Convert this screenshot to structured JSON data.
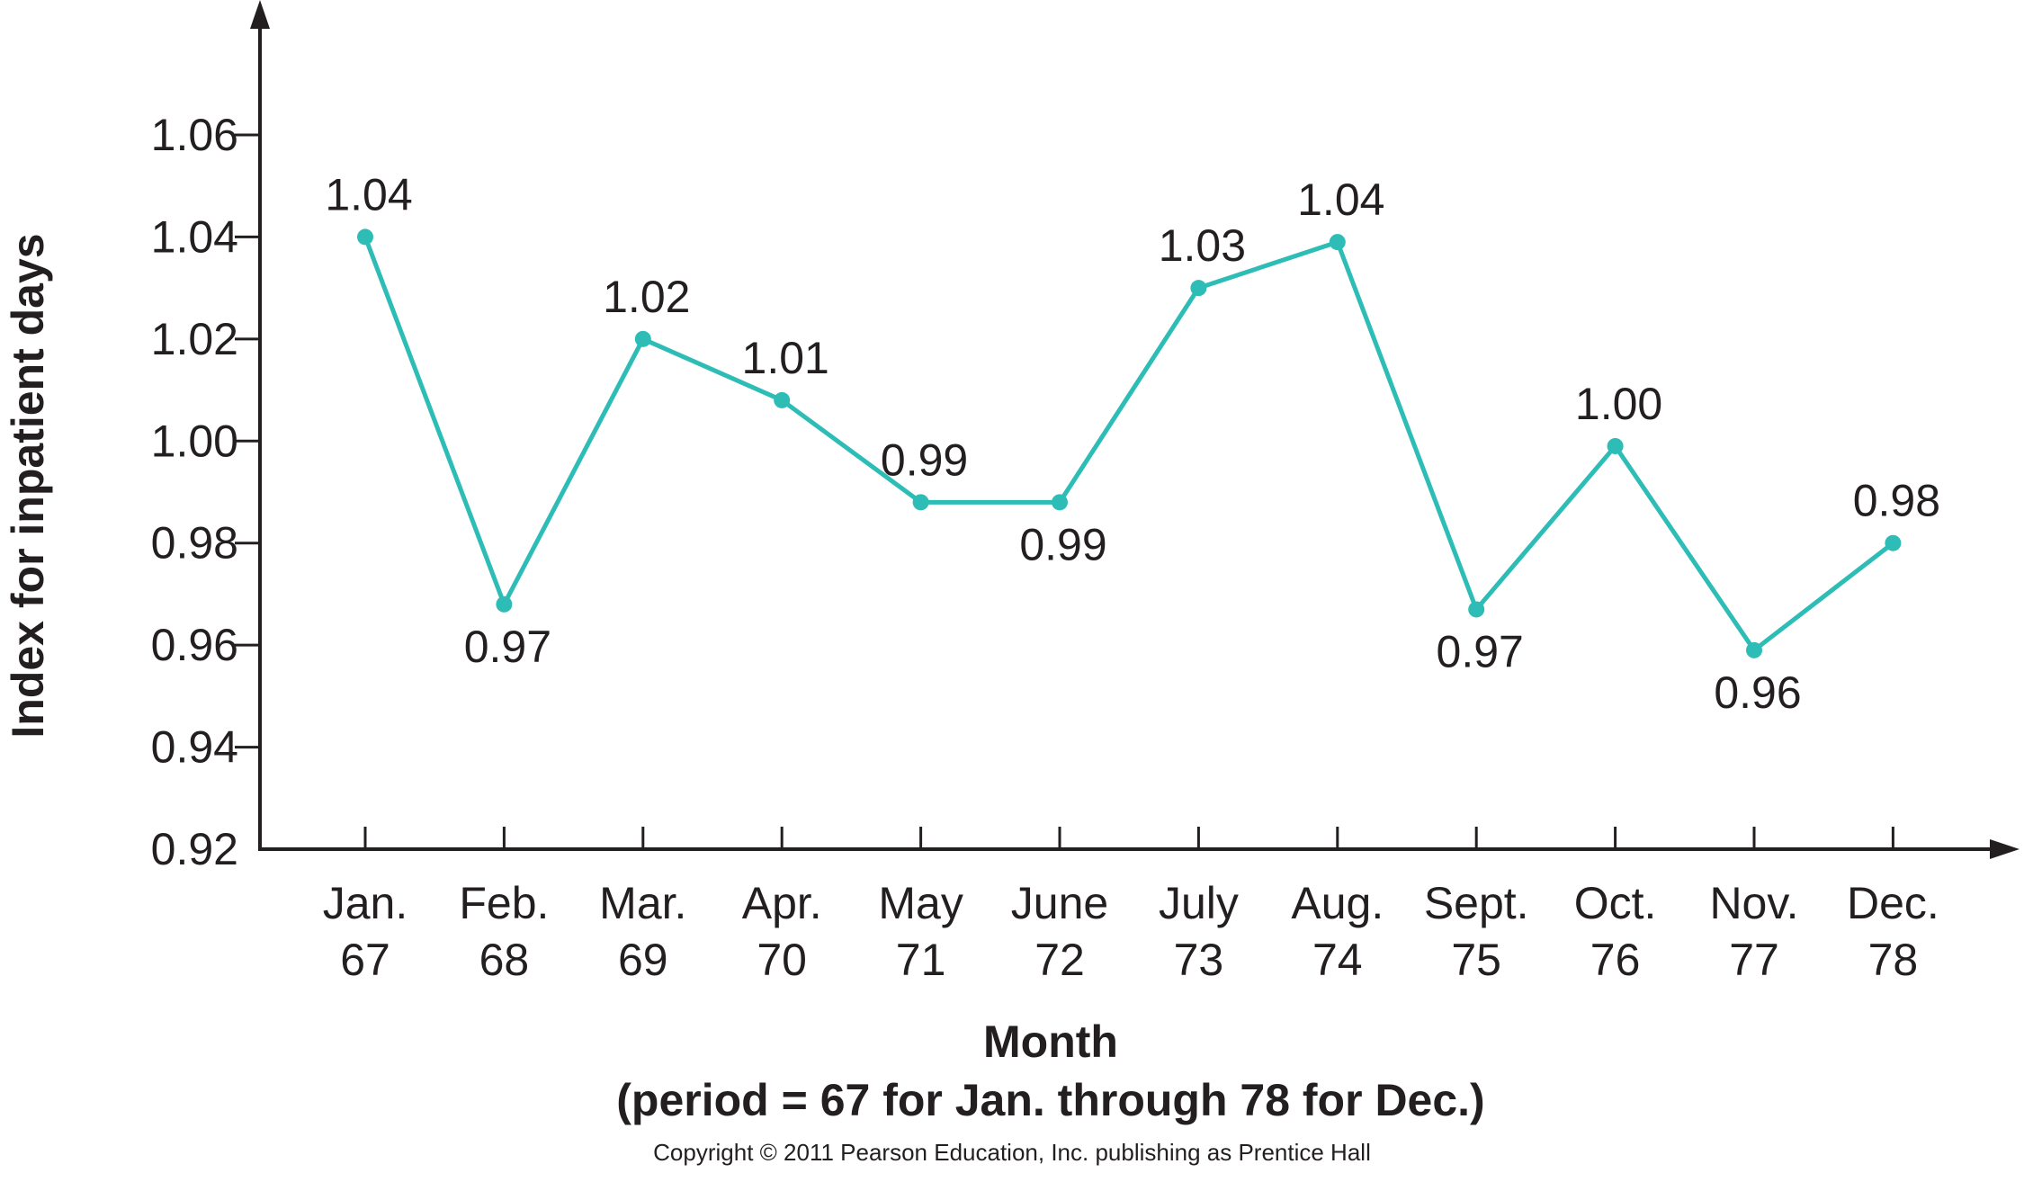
{
  "chart_data": {
    "type": "line",
    "xlabel": "Month",
    "xlabel_sub": "(period = 67 for Jan. through 78 for Dec.)",
    "ylabel": "Index for inpatient days",
    "ylim": [
      0.92,
      1.06
    ],
    "yticks": [
      "0.92",
      "0.94",
      "0.96",
      "0.98",
      "1.00",
      "1.02",
      "1.04",
      "1.06"
    ],
    "categories": [
      {
        "month": "Jan.",
        "period": "67"
      },
      {
        "month": "Feb.",
        "period": "68"
      },
      {
        "month": "Mar.",
        "period": "69"
      },
      {
        "month": "Apr.",
        "period": "70"
      },
      {
        "month": "May",
        "period": "71"
      },
      {
        "month": "June",
        "period": "72"
      },
      {
        "month": "July",
        "period": "73"
      },
      {
        "month": "Aug.",
        "period": "74"
      },
      {
        "month": "Sept.",
        "period": "75"
      },
      {
        "month": "Oct.",
        "period": "76"
      },
      {
        "month": "Nov.",
        "period": "77"
      },
      {
        "month": "Dec.",
        "period": "78"
      }
    ],
    "series": [
      {
        "values": [
          1.04,
          0.968,
          1.02,
          1.008,
          0.988,
          0.988,
          1.03,
          1.039,
          0.967,
          0.999,
          0.959,
          0.98
        ],
        "labels": [
          "1.04",
          "0.97",
          "1.02",
          "1.01",
          "0.99",
          "0.99",
          "1.03",
          "1.04",
          "0.97",
          "1.00",
          "0.96",
          "0.98"
        ],
        "label_position": [
          "above",
          "below",
          "above",
          "above",
          "above",
          "below",
          "above",
          "above",
          "below",
          "above",
          "below",
          "above"
        ],
        "color": "#2dbdb6"
      }
    ],
    "grid": false
  },
  "footer": {
    "copyright": "Copyright © 2011 Pearson Education, Inc. publishing as Prentice Hall"
  }
}
